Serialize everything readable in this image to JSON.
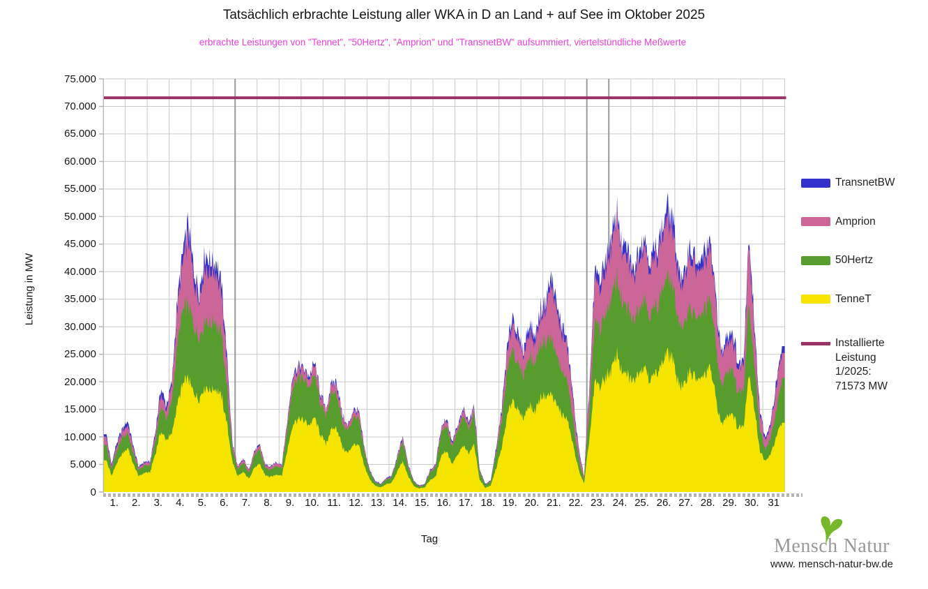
{
  "title": "Tatsächlich erbrachte Leistung aller WKA in D an Land + auf See im Oktober 2025",
  "subtitle": "erbrachte Leistungen von \"Tennet\", \"50Hertz\", \"Amprion\" und \"TransnetBW\" aufsummiert, viertelstündliche Meßwerte",
  "y_axis": {
    "title": "Leistung in MW",
    "unit": "MW",
    "min": 0,
    "max": 75000,
    "step": 5000,
    "tick_labels": [
      "0",
      "5.000",
      "10.000",
      "15.000",
      "20.000",
      "25.000",
      "30.000",
      "35.000",
      "40.000",
      "45.000",
      "50.000",
      "55.000",
      "60.000",
      "65.000",
      "70.000",
      "75.000"
    ]
  },
  "x_axis": {
    "title": "Tag",
    "tick_labels": [
      "1.",
      "2.",
      "3.",
      "4.",
      "5.",
      "6.",
      "7.",
      "8.",
      "9.",
      "10.",
      "11.",
      "12.",
      "13.",
      "14.",
      "15.",
      "16.",
      "17.",
      "18.",
      "19.",
      "20.",
      "21.",
      "22.",
      "23.",
      "24.",
      "25.",
      "26.",
      "27.",
      "28.",
      "29.",
      "30.",
      "31"
    ]
  },
  "legend": {
    "items": [
      {
        "label": "TransnetBW",
        "color": "#3333cc",
        "type": "box"
      },
      {
        "label": "Amprion",
        "color": "#cc6699",
        "type": "box"
      },
      {
        "label": "50Hertz",
        "color": "#579d2e",
        "type": "box"
      },
      {
        "label": "TenneT",
        "color": "#f5e400",
        "type": "box"
      }
    ],
    "installed": {
      "label_lines": [
        "Installierte",
        "Leistung",
        "1/2025:",
        "71573 MW"
      ],
      "color": "#993366"
    }
  },
  "logo": {
    "text_left": "Mensch",
    "text_right": "Natur",
    "url": "www. mensch-natur-bw.de"
  },
  "colors": {
    "grid": "#c9c9c9",
    "grid_strong": "#9a9a9a",
    "axis": "#b4b4b4",
    "title": "#161616",
    "subtitle": "#ec3dd8",
    "leaf_green": "#76b82a"
  },
  "chart_data": {
    "type": "area",
    "stacked": true,
    "unit": "MW",
    "days": 31,
    "samples_per_day": 4,
    "ylim": [
      0,
      75000
    ],
    "grid": true,
    "legend_position": "right",
    "grid_emphasis_day_boundaries": [
      6,
      22,
      23
    ],
    "reference_line": {
      "label": "Installierte Leistung 1/2025",
      "value_mw": 71573,
      "color": "#993366"
    },
    "series": [
      {
        "name": "TenneT",
        "color": "#f5e400",
        "values": [
          6000,
          3000,
          5200,
          7000,
          8000,
          5000,
          2800,
          3500,
          3500,
          7000,
          11000,
          9500,
          10500,
          16000,
          19500,
          20500,
          18000,
          17000,
          19000,
          18500,
          19000,
          17500,
          12500,
          5500,
          2800,
          3600,
          2400,
          4400,
          5000,
          3000,
          2700,
          3200,
          3000,
          7500,
          12500,
          13200,
          13000,
          12000,
          13500,
          10500,
          8800,
          11300,
          11600,
          8200,
          7000,
          8700,
          8400,
          4700,
          2300,
          1100,
          800,
          1400,
          1700,
          3700,
          5500,
          2800,
          1100,
          700,
          800,
          2200,
          2800,
          6700,
          7500,
          5000,
          6700,
          8300,
          7200,
          8600,
          2200,
          800,
          1100,
          4300,
          8000,
          13500,
          17000,
          14500,
          13500,
          16000,
          14500,
          17000,
          17500,
          18000,
          15500,
          14000,
          13000,
          8500,
          4000,
          1500,
          10000,
          20000,
          19000,
          21000,
          22500,
          25000,
          21500,
          21000,
          20000,
          22000,
          23000,
          20500,
          21500,
          23000,
          25500,
          24500,
          20500,
          18500,
          22000,
          21000,
          20000,
          21500,
          22500,
          17000,
          12000,
          14000,
          14500,
          11500,
          12000,
          22000,
          15000,
          7500,
          5500,
          7000,
          10000,
          12500
        ]
      },
      {
        "name": "50Hertz",
        "color": "#579d2e",
        "values": [
          3000,
          1200,
          2400,
          2800,
          2800,
          2000,
          1100,
          1400,
          1200,
          2500,
          4500,
          3800,
          6000,
          11000,
          13500,
          13500,
          12000,
          11000,
          12500,
          12000,
          12000,
          11000,
          7000,
          2300,
          1200,
          1700,
          1100,
          2200,
          2500,
          1400,
          1300,
          1600,
          1400,
          4000,
          7000,
          7600,
          7500,
          7000,
          7800,
          5800,
          4800,
          6400,
          6500,
          4500,
          3900,
          4900,
          4800,
          2600,
          1300,
          700,
          500,
          800,
          1000,
          2200,
          3600,
          1700,
          700,
          300,
          500,
          1400,
          1700,
          4200,
          4700,
          3100,
          4200,
          5300,
          4500,
          5400,
          1400,
          500,
          700,
          2700,
          4800,
          8000,
          9500,
          8300,
          7800,
          9000,
          8500,
          10000,
          10000,
          10000,
          9000,
          8000,
          7000,
          4500,
          2200,
          700,
          5500,
          11000,
          10500,
          11500,
          12500,
          14000,
          12000,
          12000,
          11000,
          12000,
          12500,
          11500,
          12000,
          12800,
          13500,
          13500,
          11500,
          10500,
          12000,
          11500,
          11000,
          12000,
          12000,
          9500,
          7000,
          8000,
          8000,
          6500,
          6500,
          13000,
          8000,
          4000,
          2000,
          3000,
          5000,
          7500
        ]
      },
      {
        "name": "Amprion",
        "color": "#cc6699",
        "values": [
          1200,
          500,
          900,
          1200,
          1400,
          800,
          400,
          500,
          500,
          1000,
          2300,
          1700,
          2700,
          6500,
          8500,
          12300,
          8500,
          7000,
          9700,
          9200,
          9200,
          7900,
          4500,
          900,
          400,
          600,
          400,
          700,
          800,
          500,
          400,
          600,
          500,
          1200,
          1600,
          1800,
          1600,
          1600,
          1800,
          1400,
          1100,
          1500,
          1500,
          1000,
          900,
          1100,
          1000,
          600,
          300,
          100,
          100,
          200,
          200,
          400,
          700,
          400,
          100,
          100,
          100,
          300,
          400,
          800,
          1000,
          700,
          800,
          1000,
          1000,
          1100,
          300,
          100,
          100,
          700,
          1600,
          3400,
          4700,
          4100,
          3700,
          4300,
          3900,
          4700,
          6100,
          9800,
          8200,
          6800,
          6000,
          3400,
          1500,
          500,
          3800,
          8000,
          7100,
          8900,
          9300,
          11000,
          8900,
          8900,
          7500,
          8900,
          9300,
          8500,
          8900,
          9500,
          10600,
          10200,
          8500,
          7600,
          8900,
          9000,
          8000,
          8900,
          9400,
          7200,
          5100,
          5500,
          5900,
          4600,
          4700,
          11300,
          5900,
          2900,
          1600,
          2500,
          4200,
          4900
        ]
      },
      {
        "name": "TransnetBW",
        "color": "#3333cc",
        "values": [
          600,
          300,
          500,
          500,
          800,
          400,
          200,
          200,
          200,
          500,
          900,
          700,
          800,
          1500,
          2000,
          2500,
          1500,
          1500,
          1800,
          1800,
          1800,
          1600,
          1000,
          300,
          100,
          100,
          100,
          200,
          200,
          100,
          100,
          100,
          100,
          300,
          400,
          400,
          400,
          400,
          400,
          300,
          300,
          300,
          400,
          300,
          200,
          300,
          300,
          100,
          100,
          100,
          100,
          100,
          100,
          200,
          200,
          100,
          100,
          100,
          100,
          100,
          100,
          300,
          300,
          200,
          300,
          400,
          300,
          400,
          100,
          100,
          100,
          300,
          600,
          1100,
          1300,
          1100,
          1000,
          1200,
          1100,
          1300,
          1400,
          1500,
          1300,
          1200,
          1000,
          600,
          300,
          100,
          700,
          1500,
          1400,
          1600,
          1700,
          1300,
          1600,
          1600,
          1500,
          1600,
          1700,
          1500,
          1600,
          1700,
          1900,
          1800,
          1500,
          1400,
          1600,
          1500,
          1500,
          1600,
          1600,
          1300,
          900,
          1000,
          1100,
          900,
          800,
          1600,
          1100,
          600,
          400,
          500,
          800,
          900
        ]
      }
    ]
  }
}
